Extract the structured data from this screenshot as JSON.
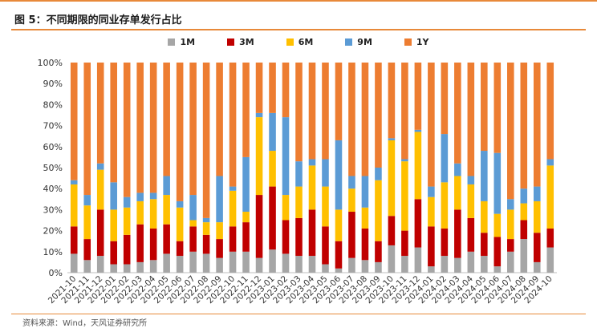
{
  "title": "图 5：不同期限的同业存单发行占比",
  "source": "资料来源：Wind，天风证券研究所",
  "chart_data": {
    "type": "bar",
    "stacked": true,
    "percent": true,
    "ylim": [
      0,
      100
    ],
    "yticks": [
      "0%",
      "10%",
      "20%",
      "30%",
      "40%",
      "50%",
      "60%",
      "70%",
      "80%",
      "90%",
      "100%"
    ],
    "categories": [
      "2021-10",
      "2021-11",
      "2021-12",
      "2022-01",
      "2022-02",
      "2022-03",
      "2022-04",
      "2022-05",
      "2022-06",
      "2022-07",
      "2022-08",
      "2022-09",
      "2022-10",
      "2022-11",
      "2022-12",
      "2023-01",
      "2023-02",
      "2023-03",
      "2023-04",
      "2023-05",
      "2023-06",
      "2023-07",
      "2023-08",
      "2023-09",
      "2023-10",
      "2023-11",
      "2023-12",
      "2024-01",
      "2024-02",
      "2024-03",
      "2024-04",
      "2024-05",
      "2024-06",
      "2024-07",
      "2024-08",
      "2024-09",
      "2024-10"
    ],
    "series": [
      {
        "name": "1M",
        "color": "#a6a6a6",
        "values": [
          9,
          6,
          8,
          4,
          4,
          5,
          6,
          9,
          8,
          10,
          9,
          7,
          10,
          10,
          7,
          11,
          9,
          8,
          8,
          4,
          2,
          7,
          6,
          5,
          13,
          8,
          12,
          3,
          8,
          7,
          10,
          8,
          3,
          10,
          16,
          5,
          12
        ]
      },
      {
        "name": "3M",
        "color": "#c00000",
        "values": [
          13,
          10,
          22,
          11,
          14,
          18,
          15,
          14,
          7,
          12,
          9,
          9,
          12,
          14,
          30,
          30,
          16,
          18,
          22,
          18,
          13,
          22,
          15,
          10,
          14,
          12,
          23,
          19,
          13,
          23,
          16,
          11,
          14,
          6,
          9,
          14,
          9
        ]
      },
      {
        "name": "6M",
        "color": "#ffc000",
        "values": [
          20,
          16,
          19,
          15,
          13,
          11,
          14,
          14,
          16,
          3,
          6,
          8,
          17,
          5,
          37,
          17,
          12,
          15,
          21,
          19,
          15,
          11,
          10,
          29,
          36,
          33,
          32,
          14,
          22,
          16,
          16,
          15,
          11,
          14,
          8,
          15,
          30
        ]
      },
      {
        "name": "9M",
        "color": "#5b9bd5",
        "values": [
          2,
          5,
          3,
          13,
          5,
          4,
          3,
          9,
          3,
          12,
          2,
          22,
          2,
          26,
          2,
          18,
          37,
          12,
          3,
          13,
          33,
          6,
          15,
          6,
          1,
          1,
          1,
          5,
          23,
          6,
          4,
          24,
          29,
          5,
          7,
          7,
          3
        ]
      },
      {
        "name": "1Y",
        "color": "#ed7d31",
        "values": [
          56,
          63,
          48,
          57,
          64,
          62,
          62,
          54,
          66,
          63,
          74,
          54,
          59,
          45,
          24,
          24,
          26,
          47,
          46,
          46,
          37,
          54,
          54,
          50,
          36,
          46,
          32,
          59,
          34,
          48,
          54,
          42,
          43,
          65,
          60,
          59,
          46
        ]
      }
    ]
  }
}
